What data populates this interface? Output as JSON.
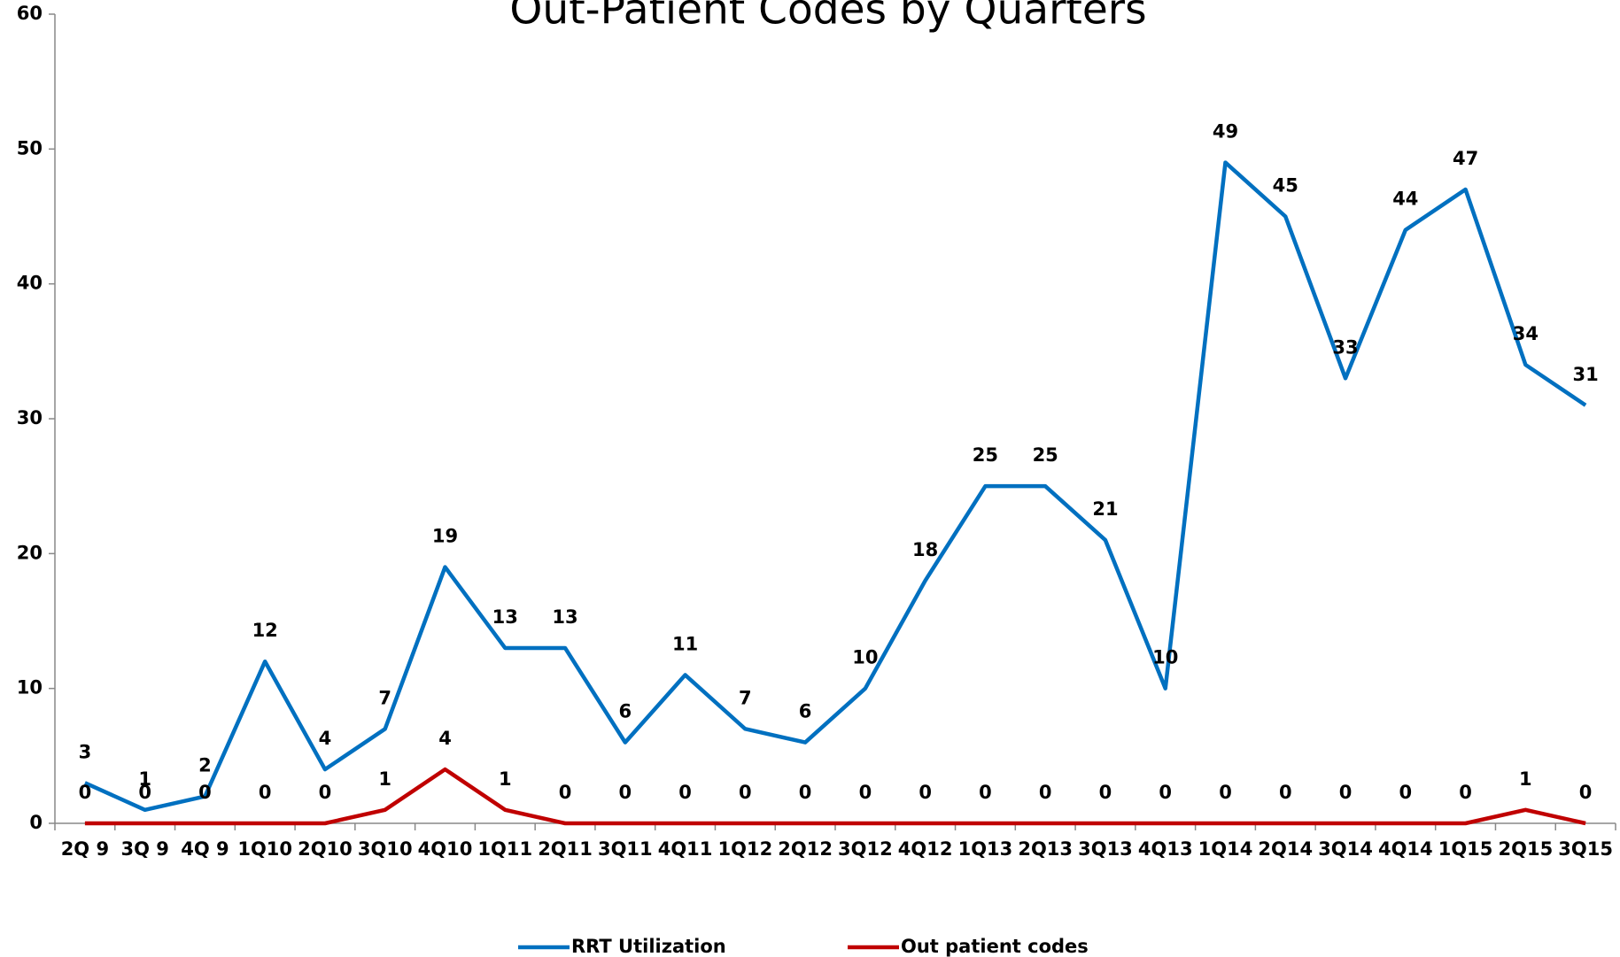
{
  "chart_data": {
    "type": "line",
    "title": "Out-Patient Codes by Quarters",
    "categories": [
      "2Q 9",
      "3Q 9",
      "4Q 9",
      "1Q10",
      "2Q10",
      "3Q10",
      "4Q10",
      "1Q11",
      "2Q11",
      "3Q11",
      "4Q11",
      "1Q12",
      "2Q12",
      "3Q12",
      "4Q12",
      "1Q13",
      "2Q13",
      "3Q13",
      "4Q13",
      "1Q14",
      "2Q14",
      "3Q14",
      "4Q14",
      "1Q15",
      "2Q15",
      "3Q15"
    ],
    "series": [
      {
        "name": "RRT Utilization",
        "color": "#0070c0",
        "values": [
          3,
          1,
          2,
          12,
          4,
          7,
          19,
          13,
          13,
          6,
          11,
          7,
          6,
          10,
          18,
          25,
          25,
          21,
          10,
          49,
          45,
          33,
          44,
          47,
          34,
          31
        ]
      },
      {
        "name": "Out patient codes",
        "color": "#c00000",
        "values": [
          0,
          0,
          0,
          0,
          0,
          1,
          4,
          1,
          0,
          0,
          0,
          0,
          0,
          0,
          0,
          0,
          0,
          0,
          0,
          0,
          0,
          0,
          0,
          0,
          1,
          0
        ]
      }
    ],
    "ylim": [
      0,
      60
    ],
    "yticks": [
      0,
      10,
      20,
      30,
      40,
      50,
      60
    ],
    "grid": false,
    "legend": "bottom"
  }
}
